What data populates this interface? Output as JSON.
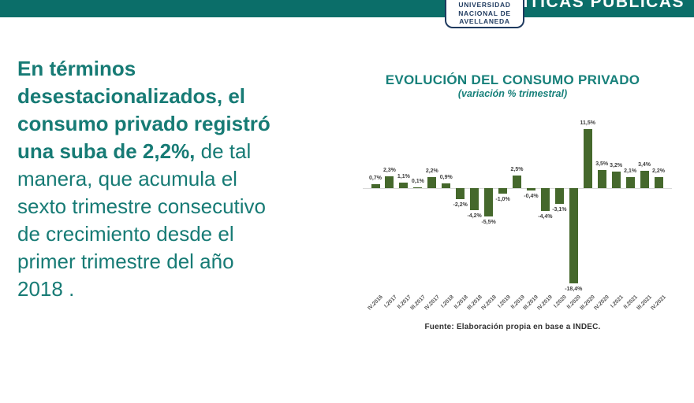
{
  "header": {
    "bar_color": "#0B6E69",
    "program_title": "POLÍTICAS PÚBLICAS",
    "logo": {
      "line1": "UNIVERSIDAD",
      "line2": "NACIONAL DE",
      "line3": "AVELLANEDA",
      "text_color": "#1F3A5F"
    }
  },
  "main_text": {
    "text_color": "#177B75",
    "lines": [
      {
        "bold": "En términos",
        "regular": ""
      },
      {
        "bold": "desestacionalizados, el",
        "regular": ""
      },
      {
        "bold": "consumo privado registró",
        "regular": ""
      },
      {
        "bold": "una suba de 2,2%,",
        "regular": " de tal"
      },
      {
        "bold": "",
        "regular": "manera, que acumula el"
      },
      {
        "bold": "",
        "regular": "sexto trimestre consecutivo"
      },
      {
        "bold": "",
        "regular": "de crecimiento desde el"
      },
      {
        "bold": "",
        "regular": "primer trimestre del año"
      },
      {
        "bold": "",
        "regular": "2018 ."
      }
    ]
  },
  "chart_data": {
    "type": "bar",
    "title": "EVOLUCIÓN DEL CONSUMO PRIVADO",
    "subtitle": "(variación % trimestral)",
    "source": "Fuente: Elaboración propia en base a INDEC.",
    "categories": [
      "IV.2016",
      "I.2017",
      "II.2017",
      "III.2017",
      "IV.2017",
      "I.2018",
      "II.2018",
      "III.2018",
      "IV.2018",
      "I.2019",
      "II.2019",
      "III.2019",
      "IV.2019",
      "I.2020",
      "II.2020",
      "III.2020",
      "IV.2020",
      "I.2021",
      "II.2021",
      "III.2021",
      "IV.2021"
    ],
    "values": [
      0.7,
      2.3,
      1.1,
      0.1,
      2.2,
      0.9,
      -2.2,
      -4.2,
      -5.5,
      -1.0,
      2.5,
      -0.4,
      -4.4,
      -3.1,
      -18.4,
      11.5,
      3.5,
      3.2,
      2.1,
      3.4,
      2.2
    ],
    "labels": [
      "0,7%",
      "2,3%",
      "1,1%",
      "0,1%",
      "2,2%",
      "0,9%",
      "-2,2%",
      "-4,2%",
      "-5,5%",
      "-1,0%",
      "2,5%",
      "-0,4%",
      "-4,4%",
      "-3,1%",
      "-18,4%",
      "11,5%",
      "3,5%",
      "3,2%",
      "2,1%",
      "3,4%",
      "2,2%"
    ],
    "bar_color": "#45682C",
    "title_color": "#17807A",
    "xlabel": "",
    "ylabel": "",
    "ylim": [
      -20,
      13
    ],
    "grid": false,
    "legend": false
  }
}
